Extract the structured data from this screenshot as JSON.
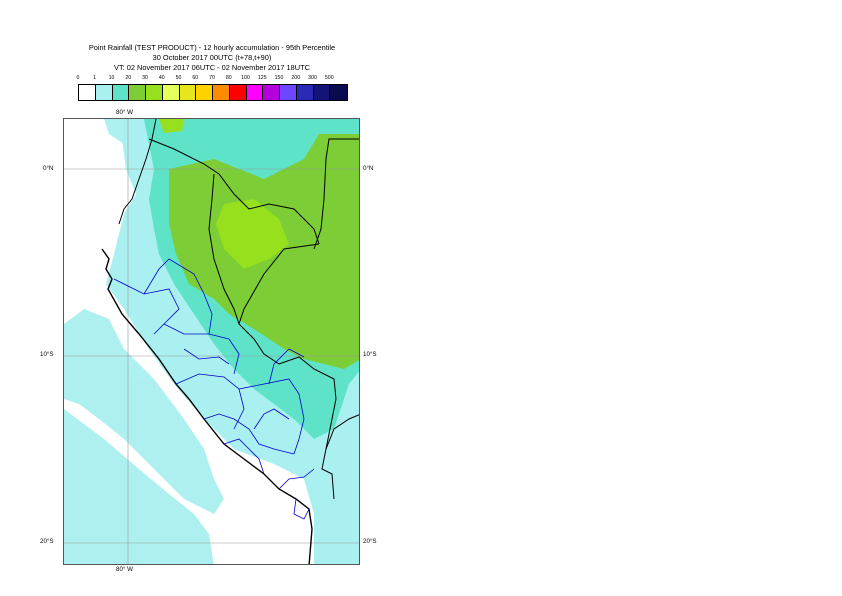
{
  "title": {
    "line1": "Point Rainfall (TEST PRODUCT) - 12 hourly accumulation - 95th Percentile",
    "line2": "30 October 2017 00UTC (t+78,t+90)",
    "line3": "VT: 02 November 2017 06UTC - 02 November 2017 18UTC"
  },
  "legend": {
    "ticks": [
      "0",
      "1",
      "10",
      "20",
      "30",
      "40",
      "50",
      "60",
      "70",
      "80",
      "100",
      "125",
      "150",
      "200",
      "300",
      "500"
    ],
    "colors": [
      "#ffffff",
      "#aaf0f0",
      "#5ee3c8",
      "#7ccd36",
      "#96e01e",
      "#e6ff5a",
      "#e6e61e",
      "#ffd200",
      "#ff8c00",
      "#ff0000",
      "#ff00ff",
      "#b400dc",
      "#6e46ff",
      "#2a2ab4",
      "#141478",
      "#0a0a50"
    ]
  },
  "map": {
    "lon_label_top": "80° W",
    "lon_label_bottom": "80° W",
    "lat_labels": [
      {
        "left": "0°N",
        "right": "0°N"
      },
      {
        "left": "10°S",
        "right": "10°S"
      },
      {
        "left": "20°S",
        "right": "20°S"
      }
    ]
  }
}
